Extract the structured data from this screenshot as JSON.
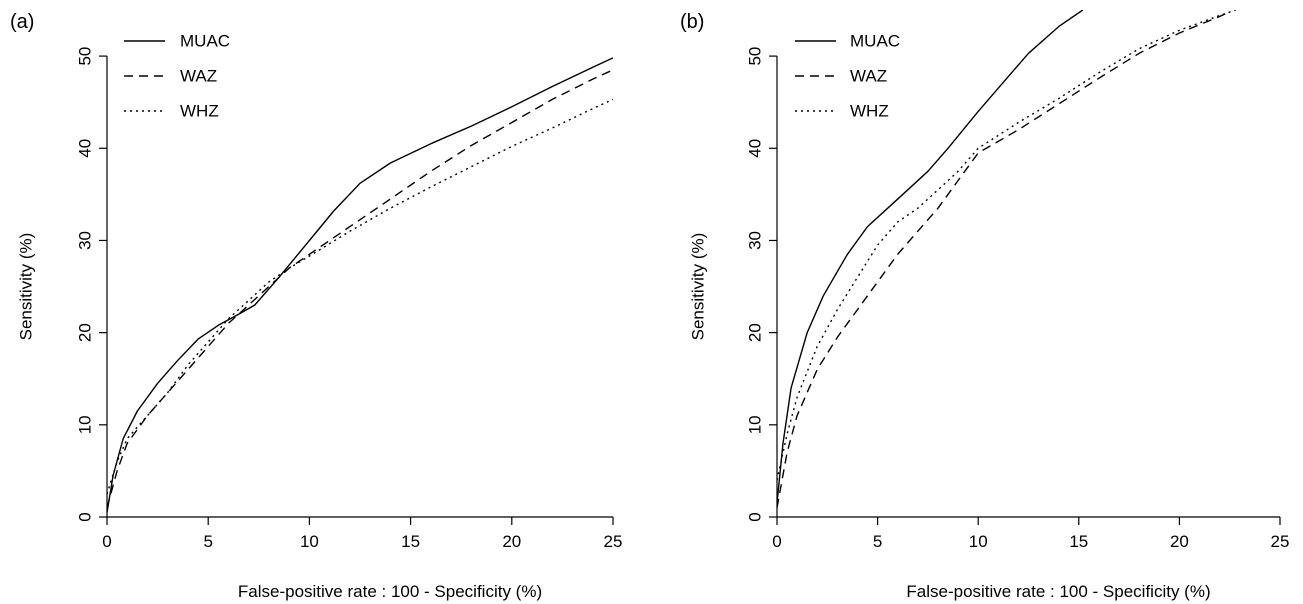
{
  "chart_data": [
    {
      "panel_label": "(a)",
      "type": "line",
      "xlabel": "False-positive rate : 100 - Specificity (%)",
      "ylabel": "Sensitivity (%)",
      "xlim": [
        0,
        25
      ],
      "ylim": [
        0,
        55
      ],
      "xticks": [
        0,
        5,
        10,
        15,
        20,
        25
      ],
      "yticks": [
        0,
        10,
        20,
        30,
        40,
        50
      ],
      "grid": false,
      "legend_position": "top-left",
      "series": [
        {
          "name": "MUAC",
          "dash": "solid",
          "x": [
            0,
            0.3,
            0.8,
            1.5,
            2.5,
            3.5,
            4.5,
            5.5,
            6.5,
            7.3,
            8.5,
            10,
            11.2,
            12.5,
            14,
            16,
            18,
            20,
            22,
            24,
            25
          ],
          "y": [
            0.5,
            4.5,
            8.5,
            11.5,
            14.5,
            17,
            19.3,
            20.8,
            22,
            23,
            26,
            30,
            33.2,
            36.2,
            38.4,
            40.5,
            42.4,
            44.5,
            46.7,
            48.8,
            49.8
          ]
        },
        {
          "name": "WAZ",
          "dash": "dashed",
          "x": [
            0,
            0.5,
            1,
            2,
            3,
            4,
            5,
            6,
            7,
            8,
            9,
            10,
            12,
            14,
            16,
            18,
            20,
            22,
            24,
            25
          ],
          "y": [
            1,
            5,
            8,
            11,
            13.5,
            16,
            18.5,
            21,
            23,
            25,
            27,
            28.5,
            31.5,
            34.5,
            37.5,
            40.3,
            42.8,
            45.3,
            47.5,
            48.5
          ]
        },
        {
          "name": "WHZ",
          "dash": "dotted",
          "x": [
            0,
            0.5,
            1,
            2,
            3,
            4,
            5,
            6,
            7,
            8,
            9,
            10,
            12,
            14,
            16,
            18,
            20,
            22,
            24,
            25
          ],
          "y": [
            2.5,
            6,
            8.5,
            11,
            13.5,
            16.5,
            19,
            21.5,
            23.5,
            25.5,
            27,
            28.3,
            31,
            33.5,
            35.8,
            38,
            40.2,
            42.2,
            44.3,
            45.3
          ]
        }
      ]
    },
    {
      "panel_label": "(b)",
      "type": "line",
      "xlabel": "False-positive rate : 100 - Specificity (%)",
      "ylabel": "Sensitivity (%)",
      "xlim": [
        0,
        25
      ],
      "ylim": [
        0,
        55
      ],
      "xticks": [
        0,
        5,
        10,
        15,
        20,
        25
      ],
      "yticks": [
        0,
        10,
        20,
        30,
        40,
        50
      ],
      "grid": false,
      "legend_position": "top-left",
      "series": [
        {
          "name": "MUAC",
          "dash": "solid",
          "x": [
            0,
            0.3,
            0.7,
            1.5,
            2.3,
            3.5,
            4.5,
            5.5,
            6.5,
            7.5,
            8.5,
            10,
            11.5,
            12.5,
            14,
            15.2
          ],
          "y": [
            1.5,
            8,
            14,
            20,
            24,
            28.5,
            31.5,
            33.5,
            35.5,
            37.5,
            40,
            44,
            47.8,
            50.3,
            53.2,
            55
          ]
        },
        {
          "name": "WAZ",
          "dash": "dashed",
          "x": [
            0,
            0.5,
            1,
            2,
            3,
            4,
            5,
            6,
            7,
            8,
            9,
            10,
            12,
            14,
            16,
            18,
            20,
            22,
            22.5
          ],
          "y": [
            1,
            7,
            11,
            16,
            19.5,
            22.5,
            25.5,
            28.5,
            31,
            33.5,
            36.5,
            39.5,
            42,
            44.8,
            47.6,
            50.3,
            52.5,
            54.3,
            54.8
          ]
        },
        {
          "name": "WHZ",
          "dash": "dotted",
          "x": [
            0,
            0.5,
            1,
            2,
            3,
            4,
            5,
            6,
            7,
            8,
            9,
            10,
            12,
            14,
            16,
            18,
            20,
            22,
            22.8
          ],
          "y": [
            4,
            9,
            13,
            18.5,
            22.5,
            26,
            29.5,
            32,
            33.5,
            35.5,
            37.5,
            40,
            42.8,
            45.4,
            48.2,
            50.8,
            52.8,
            54.4,
            55
          ]
        }
      ]
    }
  ]
}
